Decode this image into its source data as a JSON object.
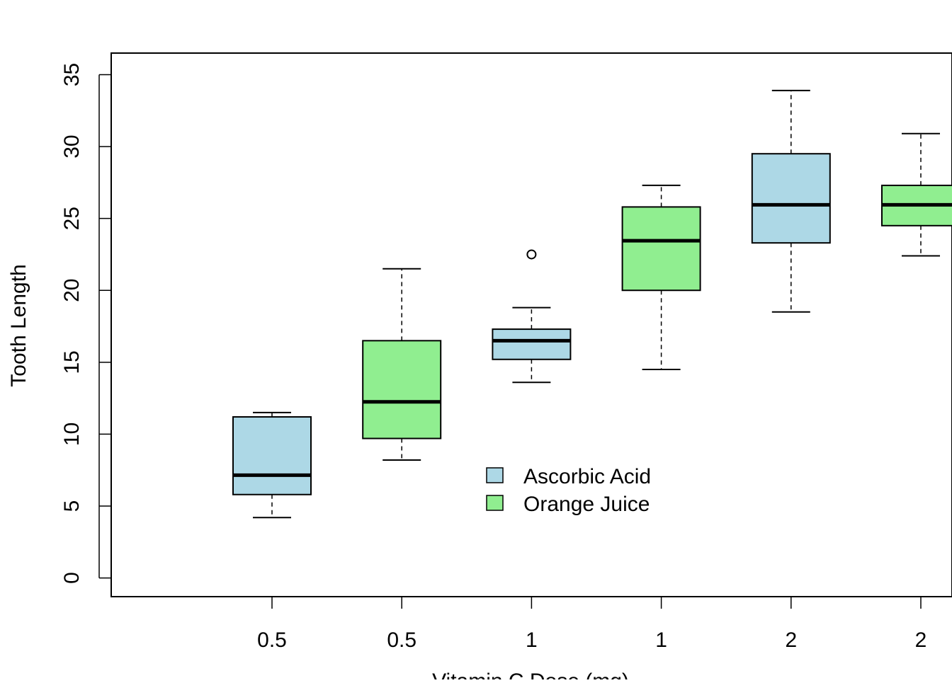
{
  "chart_data": {
    "type": "box",
    "title": "",
    "xlabel": "Vitamin C Dose (mg)",
    "ylabel": "Tooth Length",
    "ylim": [
      -1.3,
      36.5
    ],
    "yticks": [
      0,
      5,
      10,
      15,
      20,
      25,
      30,
      35
    ],
    "grid": false,
    "legend_position": "center",
    "categories": [
      "0.5",
      "0.5",
      "1",
      "1",
      "2",
      "2"
    ],
    "series": [
      {
        "name": "Ascorbic Acid",
        "color": "#add8e6",
        "positions": [
          1,
          3,
          5
        ]
      },
      {
        "name": "Orange Juice",
        "color": "#90ee90",
        "positions": [
          2,
          4,
          6
        ]
      }
    ],
    "boxes": [
      {
        "category": "0.5",
        "series": "Ascorbic Acid",
        "fill": "#add8e6",
        "whisker_low": 4.2,
        "q1": 5.8,
        "median": 7.15,
        "q3": 11.2,
        "whisker_high": 11.5,
        "outliers": []
      },
      {
        "category": "0.5",
        "series": "Orange Juice",
        "fill": "#90ee90",
        "whisker_low": 8.2,
        "q1": 9.7,
        "median": 12.25,
        "q3": 16.5,
        "whisker_high": 21.5,
        "outliers": []
      },
      {
        "category": "1",
        "series": "Ascorbic Acid",
        "fill": "#add8e6",
        "whisker_low": 13.6,
        "q1": 15.2,
        "median": 16.5,
        "q3": 17.3,
        "whisker_high": 18.8,
        "outliers": [
          22.5
        ]
      },
      {
        "category": "1",
        "series": "Orange Juice",
        "fill": "#90ee90",
        "whisker_low": 14.5,
        "q1": 20.0,
        "median": 23.45,
        "q3": 25.8,
        "whisker_high": 27.3,
        "outliers": []
      },
      {
        "category": "2",
        "series": "Ascorbic Acid",
        "fill": "#add8e6",
        "whisker_low": 18.5,
        "q1": 23.3,
        "median": 25.95,
        "q3": 29.5,
        "whisker_high": 33.9,
        "outliers": []
      },
      {
        "category": "2",
        "series": "Orange Juice",
        "fill": "#90ee90",
        "whisker_low": 22.4,
        "q1": 24.5,
        "median": 25.95,
        "q3": 27.3,
        "whisker_high": 30.9,
        "outliers": []
      }
    ],
    "legend": [
      {
        "label": "Ascorbic Acid",
        "color": "#add8e6"
      },
      {
        "label": "Orange Juice",
        "color": "#90ee90"
      }
    ]
  }
}
